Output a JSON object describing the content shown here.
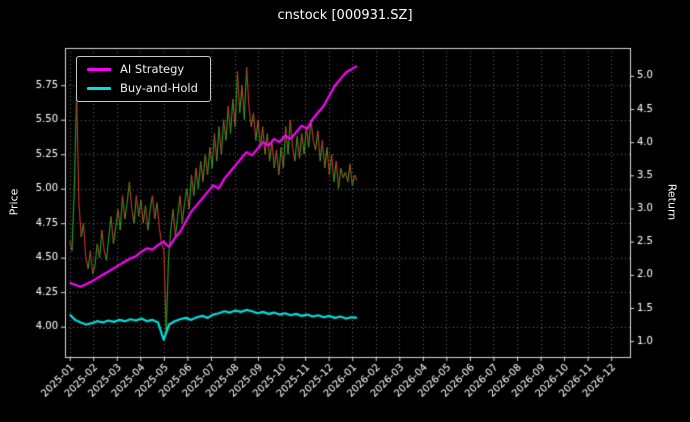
{
  "window": {
    "title": "cnstock [000931.SZ]"
  },
  "chart_data": {
    "type": "line",
    "title": "cnstock [000931.SZ]",
    "ylabel_left": "Price",
    "ylabel_right": "Return",
    "grid": "dotted",
    "legend_position": "upper-left",
    "colors": {
      "background": "#000000",
      "text": "#ffffff",
      "frame": "#d9d9d9",
      "grid": "#666666",
      "price_up": "#1fa81f",
      "price_down": "#cd3333",
      "ai_strategy": "#ff00ff",
      "buy_and_hold": "#00e0e0"
    },
    "legend": [
      {
        "label": "AI Strategy",
        "color": "#ff00ff"
      },
      {
        "label": "Buy-and-Hold",
        "color": "#00e0e0"
      }
    ],
    "x_lim_months": [
      -0.2,
      23.8
    ],
    "x_tick_labels": [
      "2025-01",
      "2025-02",
      "2025-03",
      "2025-04",
      "2025-05",
      "2025-06",
      "2025-07",
      "2025-08",
      "2025-09",
      "2025-10",
      "2025-11",
      "2025-12",
      "2026-01",
      "2026-02",
      "2026-03",
      "2026-04",
      "2026-05",
      "2026-06",
      "2026-07",
      "2026-08",
      "2026-09",
      "2026-10",
      "2026-11",
      "2026-12"
    ],
    "price_axis": {
      "lim": [
        3.78,
        6.02
      ],
      "tick_values": [
        4.0,
        4.25,
        4.5,
        4.75,
        5.0,
        5.25,
        5.5,
        5.75
      ],
      "tick_labels": [
        "4.00",
        "4.25",
        "4.50",
        "4.75",
        "5.00",
        "5.25",
        "5.50",
        "5.75"
      ]
    },
    "return_axis": {
      "lim": [
        0.76,
        5.42
      ],
      "tick_values": [
        1.0,
        1.5,
        2.0,
        2.5,
        3.0,
        3.5,
        4.0,
        4.5,
        5.0
      ],
      "tick_labels": [
        "1.0",
        "1.5",
        "2.0",
        "2.5",
        "3.0",
        "3.5",
        "4.0",
        "4.5",
        "5.0"
      ]
    },
    "series": [
      {
        "name": "price",
        "axis": "left",
        "style": "updown-segments",
        "x_start": 0,
        "x_end": 12.2,
        "values": [
          4.62,
          4.55,
          5.0,
          5.7,
          4.9,
          4.65,
          4.75,
          4.5,
          4.42,
          4.55,
          4.38,
          4.45,
          4.6,
          4.5,
          4.7,
          4.55,
          4.48,
          4.65,
          4.8,
          4.6,
          4.72,
          4.85,
          4.7,
          4.95,
          4.78,
          4.9,
          5.05,
          4.85,
          4.75,
          4.95,
          4.8,
          4.92,
          4.75,
          4.88,
          4.7,
          4.85,
          4.95,
          4.78,
          4.9,
          4.72,
          4.6,
          4.55,
          3.95,
          4.5,
          4.7,
          4.85,
          4.65,
          4.8,
          4.95,
          4.75,
          4.9,
          5.0,
          4.85,
          5.1,
          4.95,
          5.15,
          5.0,
          5.2,
          5.05,
          5.25,
          5.1,
          5.3,
          5.15,
          5.4,
          5.2,
          5.45,
          5.25,
          5.5,
          5.35,
          5.6,
          5.4,
          5.65,
          5.45,
          5.85,
          5.55,
          5.75,
          5.5,
          5.88,
          5.6,
          5.45,
          5.55,
          5.35,
          5.5,
          5.3,
          5.45,
          5.25,
          5.4,
          5.2,
          5.35,
          5.15,
          5.28,
          5.1,
          5.3,
          5.15,
          5.45,
          5.25,
          5.5,
          5.3,
          5.2,
          5.38,
          5.22,
          5.4,
          5.25,
          5.45,
          5.3,
          5.5,
          5.35,
          5.28,
          5.42,
          5.2,
          5.35,
          5.15,
          5.3,
          5.1,
          5.25,
          5.05,
          5.2,
          5.0,
          5.15,
          5.08,
          5.12,
          5.05,
          5.18,
          5.02,
          5.1,
          5.06
        ]
      },
      {
        "name": "AI Strategy",
        "axis": "right",
        "style": "line",
        "color_key": "ai_strategy",
        "x_start": 0,
        "x_end": 12.2,
        "values": [
          1.88,
          1.85,
          1.82,
          1.86,
          1.9,
          1.95,
          2.0,
          2.05,
          2.1,
          2.15,
          2.2,
          2.25,
          2.28,
          2.35,
          2.4,
          2.38,
          2.45,
          2.5,
          2.42,
          2.55,
          2.65,
          2.8,
          2.95,
          3.05,
          3.15,
          3.25,
          3.35,
          3.3,
          3.45,
          3.55,
          3.65,
          3.75,
          3.85,
          3.8,
          3.9,
          4.0,
          3.95,
          4.05,
          4.0,
          4.1,
          4.05,
          4.15,
          4.25,
          4.2,
          4.35,
          4.45,
          4.55,
          4.7,
          4.85,
          4.95,
          5.05,
          5.1,
          5.15
        ]
      },
      {
        "name": "Buy-and-Hold",
        "axis": "right",
        "style": "line",
        "color_key": "buy_and_hold",
        "x_start": 0,
        "x_end": 12.2,
        "values": [
          1.4,
          1.32,
          1.28,
          1.25,
          1.27,
          1.3,
          1.28,
          1.31,
          1.29,
          1.32,
          1.3,
          1.33,
          1.31,
          1.34,
          1.3,
          1.32,
          1.28,
          1.02,
          1.25,
          1.3,
          1.33,
          1.35,
          1.32,
          1.36,
          1.38,
          1.35,
          1.4,
          1.42,
          1.45,
          1.43,
          1.46,
          1.44,
          1.47,
          1.45,
          1.42,
          1.44,
          1.41,
          1.43,
          1.4,
          1.42,
          1.39,
          1.41,
          1.38,
          1.4,
          1.37,
          1.39,
          1.36,
          1.38,
          1.35,
          1.37,
          1.34,
          1.36,
          1.35
        ]
      }
    ]
  }
}
